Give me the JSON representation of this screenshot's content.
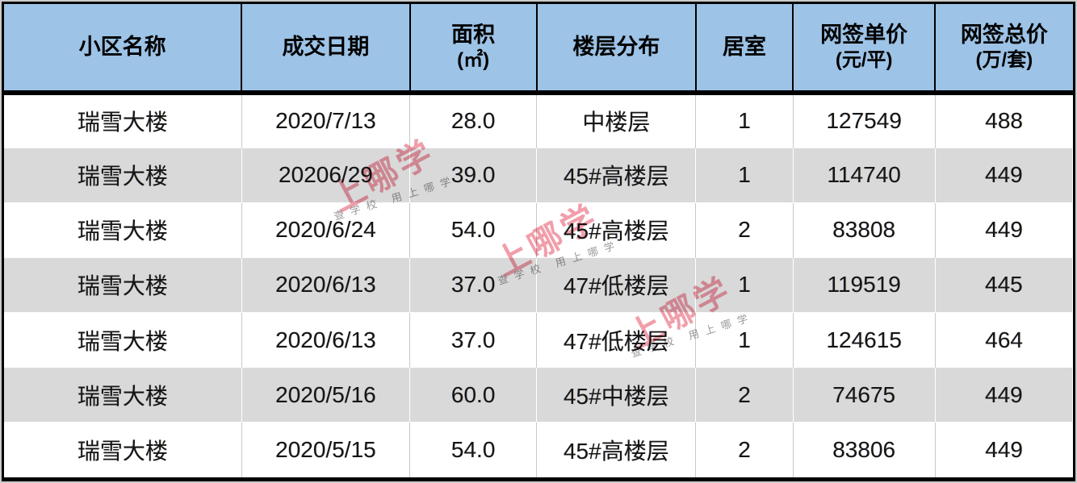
{
  "colors": {
    "header_bg": "#9DC3E6",
    "row_alt_bg": "#D9D9D9",
    "watermark_pink": "#EE8394",
    "border_black": "#000000"
  },
  "header": {
    "columns": [
      {
        "label": "小区名称",
        "sub": ""
      },
      {
        "label": "成交日期",
        "sub": ""
      },
      {
        "label": "面积",
        "sub": "(㎡)"
      },
      {
        "label": "楼层分布",
        "sub": ""
      },
      {
        "label": "居室",
        "sub": ""
      },
      {
        "label": "网签单价",
        "sub": "(元/平)"
      },
      {
        "label": "网签总价",
        "sub": "(万/套)"
      }
    ]
  },
  "row_keys": [
    "name",
    "date",
    "area",
    "floor",
    "rooms",
    "unit_price",
    "total_price"
  ],
  "rows": [
    {
      "name": "瑞雪大楼",
      "date": "2020/7/13",
      "area": "28.0",
      "floor": "中楼层",
      "rooms": "1",
      "unit_price": "127549",
      "total_price": "488"
    },
    {
      "name": "瑞雪大楼",
      "date": "20206/29",
      "area": "39.0",
      "floor": "45#高楼层",
      "rooms": "1",
      "unit_price": "114740",
      "total_price": "449"
    },
    {
      "name": "瑞雪大楼",
      "date": "2020/6/24",
      "area": "54.0",
      "floor": "45#高楼层",
      "rooms": "2",
      "unit_price": "83808",
      "total_price": "449"
    },
    {
      "name": "瑞雪大楼",
      "date": "2020/6/13",
      "area": "37.0",
      "floor": "47#低楼层",
      "rooms": "1",
      "unit_price": "119519",
      "total_price": "445"
    },
    {
      "name": "瑞雪大楼",
      "date": "2020/6/13",
      "area": "37.0",
      "floor": "47#低楼层",
      "rooms": "1",
      "unit_price": "124615",
      "total_price": "464"
    },
    {
      "name": "瑞雪大楼",
      "date": "2020/5/16",
      "area": "60.0",
      "floor": "45#中楼层",
      "rooms": "2",
      "unit_price": "74675",
      "total_price": "449"
    },
    {
      "name": "瑞雪大楼",
      "date": "2020/5/15",
      "area": "54.0",
      "floor": "45#高楼层",
      "rooms": "2",
      "unit_price": "83806",
      "total_price": "449"
    }
  ],
  "watermark": {
    "big": "上哪学",
    "small": "查学校 用上哪学"
  }
}
